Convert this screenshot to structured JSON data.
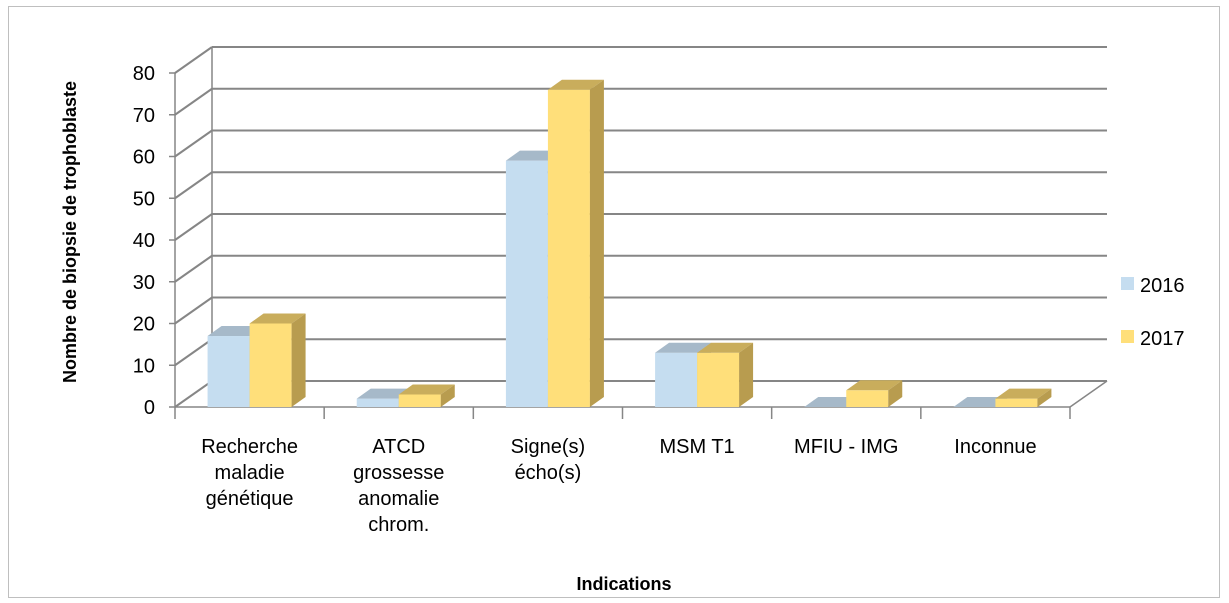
{
  "chart_data": {
    "type": "bar",
    "title": "",
    "xlabel": "Indications",
    "ylabel": "Nombre de biopsie de trophoblaste",
    "ylim": [
      0,
      80
    ],
    "yticks": [
      0,
      10,
      20,
      30,
      40,
      50,
      60,
      70,
      80
    ],
    "grid": true,
    "legend_position": "right",
    "categories": [
      [
        "Recherche",
        "maladie",
        "génétique"
      ],
      [
        "ATCD",
        "grossesse",
        "anomalie",
        "chrom."
      ],
      [
        "Signe(s)",
        "écho(s)"
      ],
      [
        "MSM T1"
      ],
      [
        "MFIU - IMG"
      ],
      [
        "Inconnue"
      ]
    ],
    "series": [
      {
        "name": "2016",
        "values": [
          17,
          2,
          59,
          13,
          0,
          0
        ],
        "color": "#c5ddf0",
        "top_color": "#a6b9c9",
        "side_color": "#93a9bb"
      },
      {
        "name": "2017",
        "values": [
          20,
          3,
          76,
          13,
          4,
          2
        ],
        "color": "#ffdf7a",
        "top_color": "#c9ad5c",
        "side_color": "#b89c4f"
      }
    ]
  }
}
